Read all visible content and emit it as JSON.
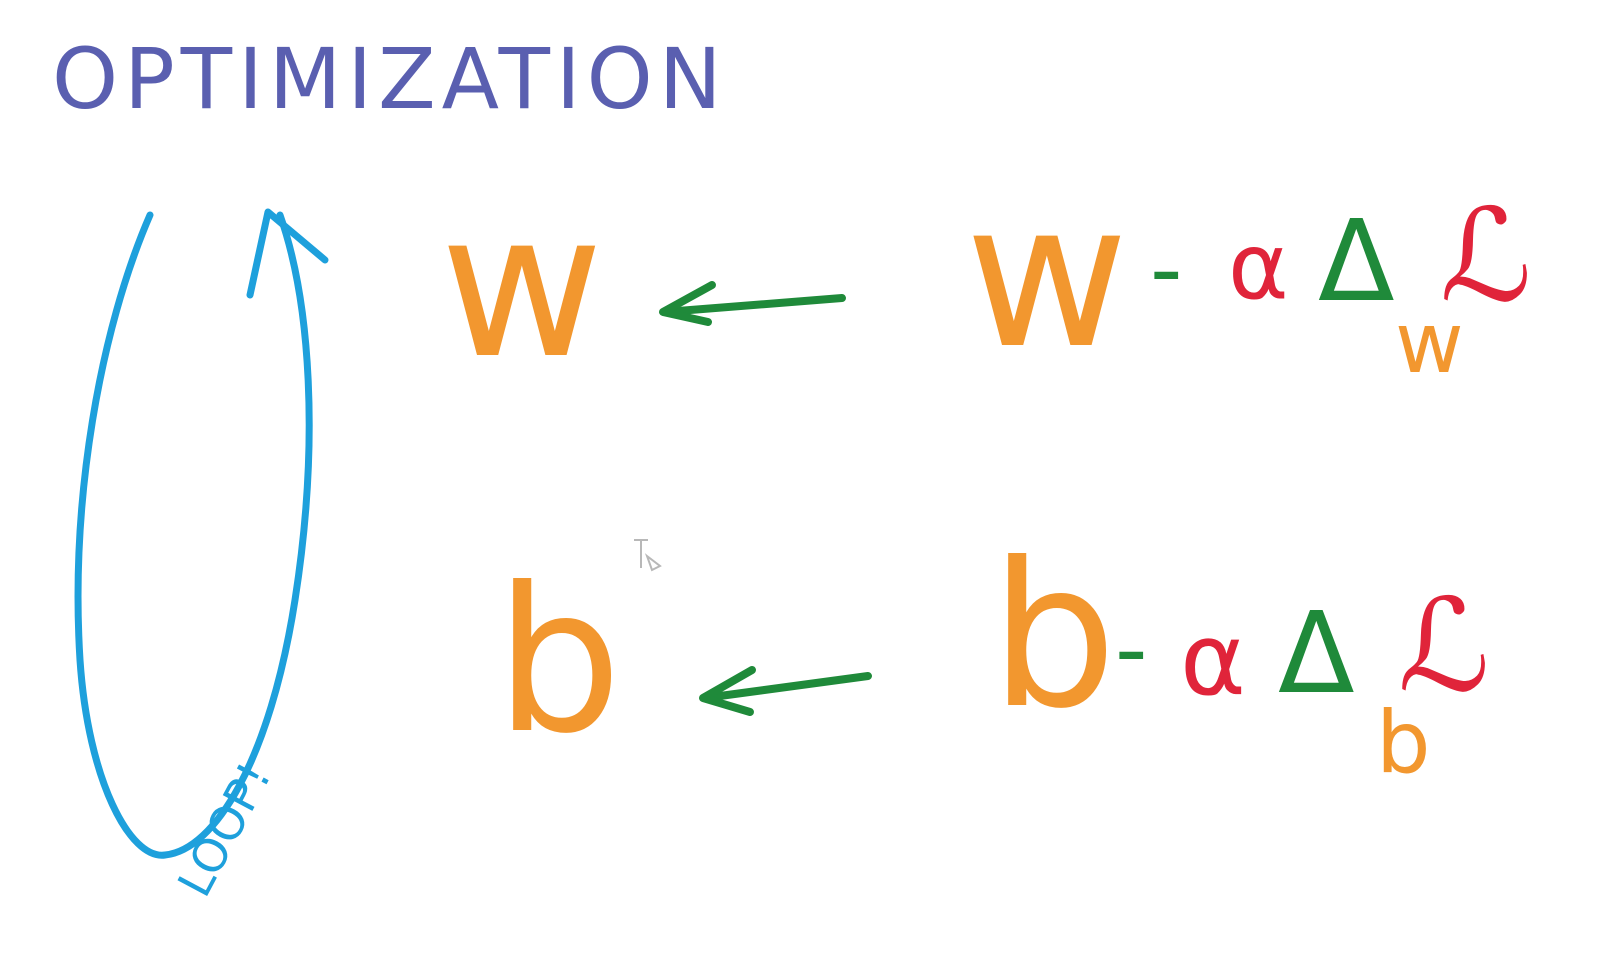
{
  "title": "OPTIMIZATION",
  "loop_label": "LOOP!",
  "colors": {
    "title": "#5a5fb0",
    "loop": "#1ea0dc",
    "variable": "#f2972f",
    "arrow": "#1f8a3a",
    "alpha": "#e0243a",
    "delta": "#1f8a3a",
    "loss": "#e0243a",
    "minus": "#1f8a3a"
  },
  "equations": [
    {
      "lhs": "w",
      "minus": "-",
      "rhs_var": "w",
      "alpha": "α",
      "delta": "Δ",
      "subscript": "w",
      "loss": "ℒ"
    },
    {
      "lhs": "b",
      "minus": "-",
      "rhs_var": "b",
      "alpha": "α",
      "delta": "Δ",
      "subscript": "b",
      "loss": "ℒ"
    }
  ],
  "icons": [
    "loop-arrow-icon",
    "left-arrow-icon"
  ]
}
